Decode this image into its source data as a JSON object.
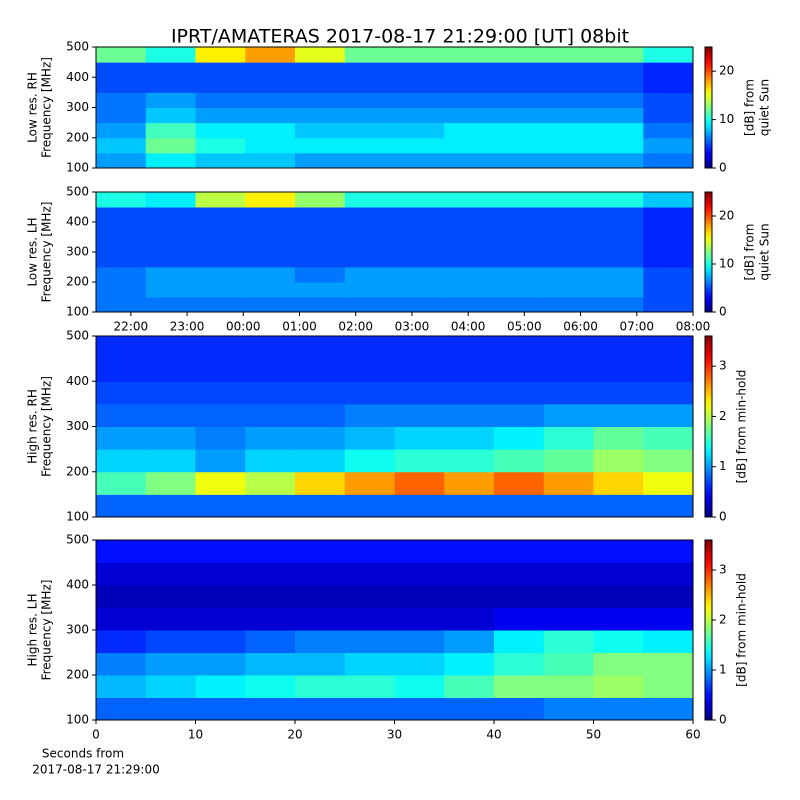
{
  "chart_data": [
    {
      "type": "heatmap",
      "title": "IPRT/AMATERAS 2017-08-17 21:29:00 [UT]   08bit",
      "ylabel": [
        "Low res. RH",
        "Frequency [MHz]"
      ],
      "clabel": [
        "[dB] from",
        "quiet Sun"
      ],
      "colormap": "jet",
      "xlim": [
        21.38,
        32
      ],
      "ylim": [
        100,
        500
      ],
      "yticks": [
        100,
        200,
        300,
        400,
        500
      ],
      "clim": [
        0,
        25
      ],
      "cticks": [
        0,
        10,
        20
      ],
      "z": [
        [
          7,
          9,
          8,
          8,
          7,
          7,
          7,
          7,
          7,
          7,
          7,
          6
        ],
        [
          8,
          12,
          10,
          9,
          9,
          9,
          9,
          9,
          9,
          9,
          9,
          7
        ],
        [
          7,
          11,
          9,
          9,
          8,
          8,
          8,
          9,
          9,
          9,
          9,
          6
        ],
        [
          6,
          8,
          7,
          7,
          7,
          7,
          7,
          7,
          7,
          7,
          7,
          5
        ],
        [
          6,
          7,
          6,
          6,
          6,
          6,
          6,
          6,
          6,
          6,
          6,
          5
        ],
        [
          5,
          5,
          5,
          5,
          5,
          5,
          5,
          5,
          5,
          5,
          5,
          4
        ],
        [
          5,
          5,
          5,
          5,
          5,
          5,
          5,
          5,
          5,
          5,
          5,
          4
        ],
        [
          12,
          10,
          16,
          18,
          15,
          12,
          12,
          12,
          12,
          12,
          12,
          10
        ]
      ]
    },
    {
      "type": "heatmap",
      "ylabel": [
        "Low res. LH",
        "Frequency [MHz]"
      ],
      "clabel": [
        "[dB] from",
        "quiet Sun"
      ],
      "colormap": "jet",
      "xlim": [
        21.38,
        32
      ],
      "ylim": [
        100,
        500
      ],
      "yticks": [
        100,
        200,
        300,
        400,
        500
      ],
      "xticks": [
        {
          "value": 22,
          "label": "22:00"
        },
        {
          "value": 23,
          "label": "23:00"
        },
        {
          "value": 24,
          "label": "00:00"
        },
        {
          "value": 25,
          "label": "01:00"
        },
        {
          "value": 26,
          "label": "02:00"
        },
        {
          "value": 27,
          "label": "03:00"
        },
        {
          "value": 28,
          "label": "04:00"
        },
        {
          "value": 29,
          "label": "05:00"
        },
        {
          "value": 30,
          "label": "06:00"
        },
        {
          "value": 31,
          "label": "07:00"
        },
        {
          "value": 32,
          "label": "08:00"
        }
      ],
      "clim": [
        0,
        25
      ],
      "cticks": [
        0,
        10,
        20
      ],
      "z": [
        [
          6,
          6,
          6,
          6,
          6,
          6,
          6,
          6,
          6,
          6,
          6,
          5
        ],
        [
          6,
          7,
          7,
          7,
          7,
          7,
          7,
          7,
          7,
          7,
          7,
          5
        ],
        [
          6,
          7,
          7,
          7,
          6,
          7,
          7,
          7,
          7,
          7,
          7,
          5
        ],
        [
          5,
          5,
          5,
          5,
          5,
          5,
          5,
          5,
          5,
          5,
          5,
          4
        ],
        [
          5,
          5,
          5,
          5,
          5,
          5,
          5,
          5,
          5,
          5,
          5,
          4
        ],
        [
          5,
          5,
          5,
          5,
          5,
          5,
          5,
          5,
          5,
          5,
          5,
          4
        ],
        [
          5,
          5,
          5,
          5,
          5,
          5,
          5,
          5,
          5,
          5,
          5,
          4
        ],
        [
          10,
          9,
          14,
          16,
          13,
          10,
          10,
          10,
          10,
          10,
          10,
          8
        ]
      ]
    },
    {
      "type": "heatmap",
      "ylabel": [
        "High res. RH",
        "Frequency [MHz]"
      ],
      "clabel": [
        "[dB] from min-hold"
      ],
      "colormap": "jet",
      "xlim": [
        0,
        60
      ],
      "ylim": [
        100,
        500
      ],
      "yticks": [
        100,
        200,
        300,
        400,
        500
      ],
      "clim": [
        0,
        3.6
      ],
      "cticks": [
        0,
        1,
        2,
        3
      ],
      "z": [
        [
          0.8,
          0.8,
          0.8,
          0.8,
          0.8,
          0.8,
          0.8,
          0.8,
          0.8,
          0.8,
          0.8,
          0.8
        ],
        [
          1.6,
          1.8,
          2.2,
          2.0,
          2.4,
          2.6,
          2.8,
          2.6,
          2.8,
          2.6,
          2.4,
          2.2
        ],
        [
          1.2,
          1.2,
          1.0,
          1.2,
          1.2,
          1.4,
          1.5,
          1.5,
          1.6,
          1.7,
          1.9,
          1.8
        ],
        [
          1.0,
          1.0,
          0.9,
          1.0,
          1.0,
          1.1,
          1.2,
          1.2,
          1.3,
          1.5,
          1.7,
          1.6
        ],
        [
          0.8,
          0.8,
          0.8,
          0.8,
          0.8,
          0.9,
          0.9,
          0.9,
          0.9,
          1.0,
          1.0,
          1.0
        ],
        [
          0.7,
          0.7,
          0.7,
          0.7,
          0.7,
          0.7,
          0.7,
          0.7,
          0.7,
          0.7,
          0.7,
          0.7
        ],
        [
          0.6,
          0.6,
          0.6,
          0.6,
          0.6,
          0.6,
          0.6,
          0.6,
          0.6,
          0.6,
          0.6,
          0.6
        ],
        [
          0.6,
          0.6,
          0.6,
          0.6,
          0.6,
          0.6,
          0.6,
          0.6,
          0.6,
          0.6,
          0.6,
          0.6
        ]
      ]
    },
    {
      "type": "heatmap",
      "ylabel": [
        "High res. LH",
        "Frequency [MHz]"
      ],
      "clabel": [
        "[dB] from min-hold"
      ],
      "xlabel": [
        "Seconds from",
        "2017-08-17 21:29:00"
      ],
      "colormap": "jet",
      "xlim": [
        0,
        60
      ],
      "ylim": [
        100,
        500
      ],
      "yticks": [
        100,
        200,
        300,
        400,
        500
      ],
      "xticks": [
        0,
        10,
        20,
        30,
        40,
        50,
        60
      ],
      "clim": [
        0,
        3.6
      ],
      "cticks": [
        0,
        1,
        2,
        3
      ],
      "z": [
        [
          0.8,
          0.8,
          0.8,
          0.8,
          0.8,
          0.8,
          0.8,
          0.8,
          0.8,
          0.9,
          0.9,
          0.9
        ],
        [
          1.1,
          1.2,
          1.3,
          1.4,
          1.5,
          1.5,
          1.4,
          1.6,
          1.8,
          1.8,
          1.9,
          1.8
        ],
        [
          0.9,
          1.0,
          1.0,
          1.1,
          1.1,
          1.2,
          1.2,
          1.3,
          1.5,
          1.6,
          1.8,
          1.8
        ],
        [
          0.6,
          0.7,
          0.7,
          0.8,
          0.9,
          0.9,
          0.9,
          1.0,
          1.3,
          1.5,
          1.4,
          1.3
        ],
        [
          0.3,
          0.3,
          0.3,
          0.3,
          0.3,
          0.3,
          0.3,
          0.3,
          0.4,
          0.4,
          0.4,
          0.4
        ],
        [
          0.2,
          0.2,
          0.2,
          0.2,
          0.2,
          0.2,
          0.2,
          0.2,
          0.2,
          0.2,
          0.2,
          0.2
        ],
        [
          0.3,
          0.3,
          0.3,
          0.3,
          0.3,
          0.3,
          0.3,
          0.3,
          0.3,
          0.3,
          0.3,
          0.3
        ],
        [
          0.5,
          0.5,
          0.5,
          0.5,
          0.5,
          0.5,
          0.5,
          0.5,
          0.5,
          0.5,
          0.5,
          0.5
        ]
      ]
    }
  ]
}
